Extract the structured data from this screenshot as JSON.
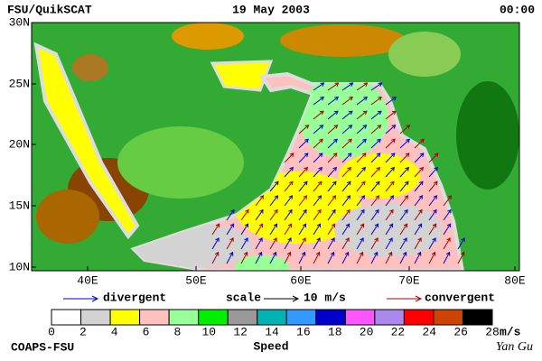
{
  "header": {
    "left": "FSU/QuikSCAT",
    "center": "19 May 2003",
    "right": "00:00"
  },
  "map": {
    "lat_labels": [
      "30N",
      "25N",
      "20N",
      "15N",
      "10N"
    ],
    "lon_labels": [
      "40E",
      "50E",
      "60E",
      "70E",
      "80E"
    ]
  },
  "legend": {
    "divergent": "divergent",
    "scale": "scale",
    "scale_value": "10 m/s",
    "convergent": "convergent",
    "divergent_color": "#0000cc",
    "convergent_color": "#aa0000"
  },
  "colorbar": {
    "colors": [
      "#ffffff",
      "#d3d3d3",
      "#ffff00",
      "#ffc0c0",
      "#99ff99",
      "#00ee00",
      "#999999",
      "#00b3b3",
      "#3399ff",
      "#0000cc",
      "#ff55ff",
      "#aa88ee",
      "#ff0000",
      "#cc4400",
      "#000000"
    ],
    "ticks": [
      0,
      2,
      4,
      6,
      8,
      10,
      12,
      14,
      16,
      18,
      20,
      22,
      24,
      26,
      28
    ],
    "unit": "m/s",
    "label": "Speed"
  },
  "footer": {
    "left": "COAPS-FSU",
    "right": "Yan Gu"
  }
}
